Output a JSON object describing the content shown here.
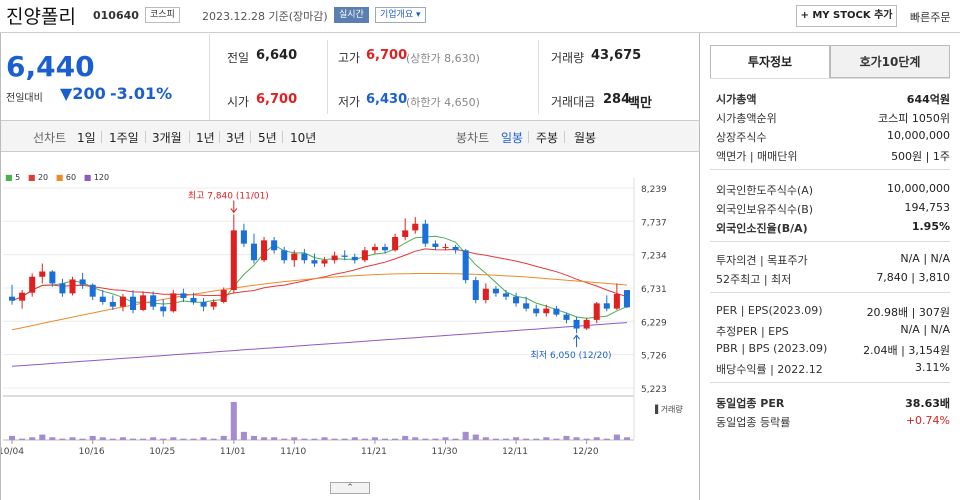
{
  "header": {
    "stock_name": "진양폴리",
    "stock_code": "010640",
    "market_badge": "코스피",
    "date_text": "2023.12.28 기준(장마감)",
    "realtime_badge": "실시간",
    "company_info_dropdown": "기업개요 ▾",
    "my_stock_button": "+ MY STOCK 추가",
    "quick_order": "빠른주문"
  },
  "price": {
    "current": "6,440",
    "change_label": "전일대비",
    "change_value": "▼200",
    "change_pct": "-3.01%"
  },
  "quote": {
    "prev_close_label": "전일",
    "prev_close": "6,640",
    "high_label": "고가",
    "high": "6,700",
    "high_sub": "(상한가 8,630)",
    "volume_label": "거래량",
    "volume": "43,675",
    "open_label": "시가",
    "open": "6,700",
    "low_label": "저가",
    "low": "6,430",
    "low_sub": "(하한가 4,650)",
    "value_label": "거래대금",
    "value": "284",
    "value_unit": "백만"
  },
  "period_bar": {
    "line_label": "선차트",
    "line_periods": [
      "1일",
      "1주일",
      "3개월",
      "1년",
      "3년",
      "5년",
      "10년"
    ],
    "candle_label": "봉차트",
    "candle_periods": [
      "일봉",
      "주봉",
      "월봉"
    ],
    "active_candle": "일봉"
  },
  "chart_data": {
    "type": "candlestick",
    "moving_average_legend": [
      {
        "name": "5",
        "color": "#4caf50"
      },
      {
        "name": "20",
        "color": "#e53935"
      },
      {
        "name": "60",
        "color": "#ef8a2a"
      },
      {
        "name": "120",
        "color": "#8e5bc4"
      }
    ],
    "y_ticks": [
      "8,239",
      "7,737",
      "7,234",
      "6,731",
      "6,229",
      "5,726",
      "5,223"
    ],
    "y_tick_values": [
      8239,
      7737,
      7234,
      6731,
      6229,
      5726,
      5223
    ],
    "ylim": [
      5223,
      8239
    ],
    "x_ticks": [
      "10/04",
      "10/16",
      "10/25",
      "11/01",
      "11/10",
      "11/21",
      "11/30",
      "12/11",
      "12/20"
    ],
    "annotation_high": "최고 7,840 (11/01)",
    "annotation_low": "최저 6,050 (12/20)",
    "volume_label": "거래량",
    "up_color": "#e02020",
    "down_color": "#1a6fd8",
    "candles": [
      [
        6600,
        6780,
        6480,
        6540
      ],
      [
        6540,
        6700,
        6420,
        6660
      ],
      [
        6660,
        6950,
        6600,
        6900
      ],
      [
        6900,
        7100,
        6800,
        6980
      ],
      [
        6980,
        7000,
        6750,
        6800
      ],
      [
        6800,
        6870,
        6600,
        6650
      ],
      [
        6650,
        6900,
        6620,
        6860
      ],
      [
        6860,
        6960,
        6720,
        6780
      ],
      [
        6780,
        6800,
        6550,
        6600
      ],
      [
        6600,
        6700,
        6480,
        6520
      ],
      [
        6520,
        6620,
        6400,
        6450
      ],
      [
        6450,
        6640,
        6380,
        6600
      ],
      [
        6600,
        6700,
        6350,
        6400
      ],
      [
        6400,
        6680,
        6380,
        6620
      ],
      [
        6620,
        6680,
        6400,
        6450
      ],
      [
        6450,
        6560,
        6300,
        6380
      ],
      [
        6380,
        6700,
        6360,
        6650
      ],
      [
        6650,
        6720,
        6520,
        6580
      ],
      [
        6580,
        6660,
        6480,
        6520
      ],
      [
        6520,
        6580,
        6380,
        6450
      ],
      [
        6450,
        6560,
        6400,
        6520
      ],
      [
        6520,
        6740,
        6500,
        6700
      ],
      [
        6700,
        7840,
        6650,
        7600
      ],
      [
        7600,
        7700,
        7350,
        7400
      ],
      [
        7400,
        7550,
        7100,
        7150
      ],
      [
        7150,
        7500,
        7120,
        7450
      ],
      [
        7450,
        7500,
        7250,
        7300
      ],
      [
        7300,
        7350,
        7100,
        7150
      ],
      [
        7150,
        7300,
        7050,
        7250
      ],
      [
        7250,
        7320,
        7100,
        7150
      ],
      [
        7150,
        7250,
        7050,
        7100
      ],
      [
        7100,
        7200,
        7050,
        7150
      ],
      [
        7150,
        7280,
        7100,
        7220
      ],
      [
        7220,
        7300,
        7150,
        7200
      ],
      [
        7200,
        7250,
        7100,
        7150
      ],
      [
        7150,
        7350,
        7120,
        7300
      ],
      [
        7300,
        7400,
        7250,
        7350
      ],
      [
        7350,
        7400,
        7250,
        7300
      ],
      [
        7300,
        7550,
        7280,
        7500
      ],
      [
        7500,
        7780,
        7450,
        7600
      ],
      [
        7600,
        7800,
        7550,
        7700
      ],
      [
        7700,
        7760,
        7350,
        7400
      ],
      [
        7400,
        7450,
        7300,
        7350
      ],
      [
        7350,
        7400,
        7300,
        7350
      ],
      [
        7350,
        7380,
        7250,
        7300
      ],
      [
        7300,
        7320,
        6800,
        6850
      ],
      [
        6850,
        6900,
        6500,
        6550
      ],
      [
        6550,
        6800,
        6500,
        6720
      ],
      [
        6720,
        6760,
        6600,
        6650
      ],
      [
        6650,
        6700,
        6550,
        6600
      ],
      [
        6600,
        6660,
        6450,
        6500
      ],
      [
        6500,
        6600,
        6380,
        6420
      ],
      [
        6420,
        6480,
        6300,
        6350
      ],
      [
        6350,
        6480,
        6300,
        6420
      ],
      [
        6420,
        6460,
        6300,
        6330
      ],
      [
        6330,
        6360,
        6200,
        6250
      ],
      [
        6250,
        6300,
        6050,
        6120
      ],
      [
        6120,
        6280,
        6100,
        6250
      ],
      [
        6250,
        6520,
        6200,
        6500
      ],
      [
        6500,
        6620,
        6380,
        6420
      ],
      [
        6420,
        6800,
        6400,
        6640
      ],
      [
        6700,
        6700,
        6430,
        6440
      ]
    ],
    "volumes": [
      3,
      1,
      2,
      4,
      2,
      1,
      2,
      1,
      3,
      2,
      1,
      2,
      1,
      1,
      2,
      1,
      2,
      1,
      1,
      2,
      1,
      3,
      28,
      6,
      3,
      2,
      2,
      1,
      2,
      1,
      1,
      2,
      1,
      1,
      2,
      1,
      2,
      1,
      1,
      3,
      2,
      1,
      1,
      2,
      1,
      6,
      4,
      2,
      1,
      1,
      2,
      1,
      1,
      2,
      1,
      3,
      2,
      1,
      2,
      1,
      4,
      2
    ]
  },
  "right_panel": {
    "tab_invest": "투자정보",
    "tab_orderbook": "호가10단계",
    "rows_a": [
      {
        "k": "시가총액",
        "v": "644억원"
      },
      {
        "k": "시가총액순위",
        "v": "코스피 1050위"
      },
      {
        "k": "상장주식수",
        "v": "10,000,000"
      },
      {
        "k": "액면가 | 매매단위",
        "v": "500원 | 1주"
      }
    ],
    "rows_b": [
      {
        "k": "외국인한도주식수(A)",
        "v": "10,000,000"
      },
      {
        "k": "외국인보유주식수(B)",
        "v": "194,753"
      },
      {
        "k": "외국인소진율(B/A)",
        "v": "1.95%"
      }
    ],
    "rows_c": [
      {
        "k": "투자의견 | 목표주가",
        "v": "N/A | N/A"
      },
      {
        "k": "52주최고 | 최저",
        "v": "7,840 | 3,810"
      }
    ],
    "rows_d": [
      {
        "k": "PER | EPS(2023.09)",
        "v": "20.98배 | 307원"
      },
      {
        "k": "추정PER | EPS",
        "v": "N/A | N/A"
      },
      {
        "k": "PBR | BPS (2023.09)",
        "v": "2.04배 | 3,154원"
      },
      {
        "k": "배당수익률 | 2022.12",
        "v": "3.11%"
      }
    ],
    "rows_e": [
      {
        "k": "동일업종 PER",
        "v": "38.63배"
      },
      {
        "k": "동일업종 등락률",
        "v": "+0.74%"
      }
    ]
  }
}
